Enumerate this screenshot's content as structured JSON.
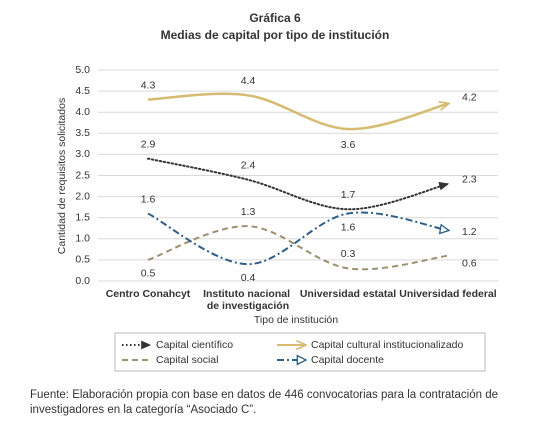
{
  "chart_data": {
    "type": "line",
    "title": "Gráfica 6",
    "subtitle": "Medias de capital por tipo de institución",
    "y_label": "Cantidad de requisitos solicitados",
    "x_label": "Tipo de institución",
    "categories": [
      "Centro Conahcyt",
      "Instituto nacional de investigación",
      "Universidad estatal",
      "Universidad federal"
    ],
    "series": [
      {
        "name": "Capital científico",
        "color": "#333333",
        "line_style": "dotted",
        "marker": "arrow",
        "values": [
          2.9,
          2.4,
          1.7,
          2.3
        ]
      },
      {
        "name": "Capital cultural institucionalizado",
        "color": "#d8bb72",
        "line_style": "solid",
        "marker": "open-arrow",
        "values": [
          4.3,
          4.4,
          3.6,
          4.2
        ]
      },
      {
        "name": "Capital social",
        "color": "#9c9070",
        "line_style": "dashed",
        "marker": "none",
        "values": [
          0.5,
          1.3,
          0.3,
          0.6
        ]
      },
      {
        "name": "Capital docente",
        "color": "#2d5f8a",
        "line_style": "dash-dot",
        "marker": "open-triangle",
        "values": [
          1.6,
          0.4,
          1.6,
          1.2
        ]
      }
    ],
    "ylim": [
      0,
      5
    ],
    "yticks": [
      {
        "value": 0,
        "label": "0.0"
      },
      0.5,
      {
        "value": 1,
        "label": "1.0"
      },
      1.5,
      {
        "value": 2,
        "label": "2.0"
      },
      2.5,
      {
        "value": 3,
        "label": "3.0"
      },
      3.5,
      {
        "value": 4,
        "label": "4.0"
      },
      4.5,
      {
        "value": 5,
        "label": "5.0"
      }
    ],
    "grid": true,
    "legend": "bottom",
    "source": "Fuente: Elaboración propia con base en datos de 446 convocatorias para la contratación de investigadores en la categoría “Asociado C”."
  }
}
